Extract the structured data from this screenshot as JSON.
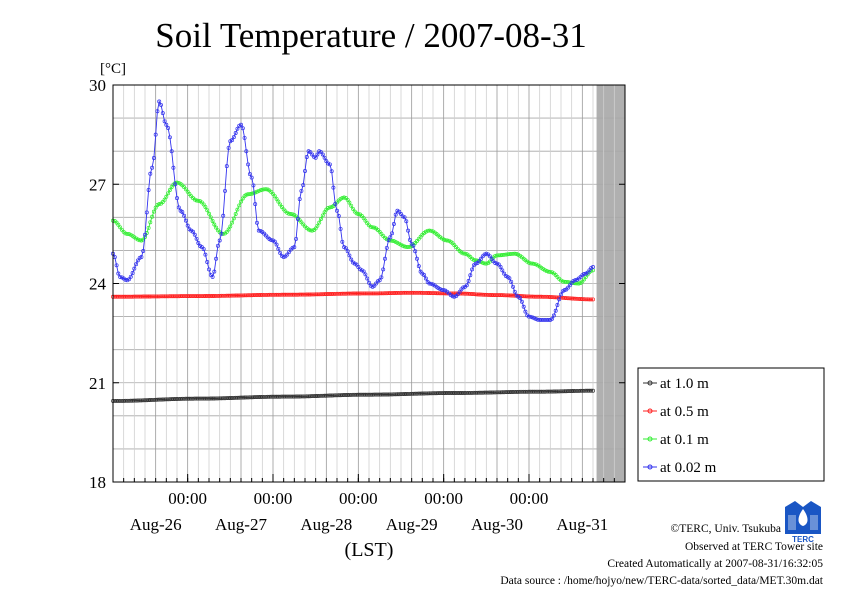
{
  "chart_data": {
    "type": "line",
    "title": "Soil Temperature / 2007-08-31",
    "yunit": "[°C]",
    "xlabel": "(LST)",
    "ylim": [
      18,
      30
    ],
    "yticks": [
      {
        "value": 18,
        "label": "18"
      },
      {
        "value": 21,
        "label": "21"
      },
      {
        "value": 24,
        "label": "24"
      },
      {
        "value": 27,
        "label": "27"
      },
      {
        "value": 30,
        "label": "30"
      }
    ],
    "xlim": [
      0,
      144
    ],
    "time_ticks": [
      {
        "hour": 21,
        "label": "00:00"
      },
      {
        "hour": 45,
        "label": "00:00"
      },
      {
        "hour": 69,
        "label": "00:00"
      },
      {
        "hour": 93,
        "label": "00:00"
      },
      {
        "hour": 117,
        "label": "00:00"
      }
    ],
    "day_labels": [
      {
        "hour": 12,
        "label": "Aug-26"
      },
      {
        "hour": 36,
        "label": "Aug-27"
      },
      {
        "hour": 60,
        "label": "Aug-28"
      },
      {
        "hour": 84,
        "label": "Aug-29"
      },
      {
        "hour": 108,
        "label": "Aug-30"
      },
      {
        "hour": 132,
        "label": "Aug-31"
      }
    ],
    "no_data_from_hour": 136,
    "series": [
      {
        "name": "at 1.0 m",
        "color": "#333333",
        "x": [
          0,
          24,
          48,
          72,
          96,
          120,
          135
        ],
        "values": [
          20.45,
          20.52,
          20.58,
          20.64,
          20.69,
          20.73,
          20.76
        ]
      },
      {
        "name": "at 0.5 m",
        "color": "#ff2020",
        "x": [
          0,
          24,
          48,
          72,
          84,
          96,
          108,
          120,
          135
        ],
        "values": [
          23.6,
          23.62,
          23.66,
          23.7,
          23.72,
          23.7,
          23.65,
          23.6,
          23.52
        ]
      },
      {
        "name": "at 0.1 m",
        "color": "#33ee33",
        "x": [
          0,
          4,
          8,
          13,
          18,
          24,
          31,
          38,
          43,
          50,
          56,
          61,
          65,
          69,
          73,
          78,
          83,
          89,
          94,
          99,
          102,
          105,
          108,
          113,
          118,
          123,
          127,
          131,
          135
        ],
        "values": [
          25.9,
          25.5,
          25.3,
          26.4,
          27.05,
          26.5,
          25.5,
          26.7,
          26.85,
          26.1,
          25.6,
          26.3,
          26.6,
          26.1,
          25.7,
          25.3,
          25.1,
          25.6,
          25.3,
          24.9,
          24.7,
          24.6,
          24.85,
          24.9,
          24.6,
          24.35,
          24.05,
          24.0,
          24.4
        ]
      },
      {
        "name": "at 0.02 m",
        "color": "#3333ee",
        "x": [
          0,
          2,
          4,
          8,
          11,
          13,
          15,
          19,
          22,
          25,
          28,
          30,
          33,
          36,
          39,
          41,
          45,
          48,
          51,
          53,
          55,
          57,
          58,
          61,
          63,
          65,
          68,
          70,
          73,
          75,
          78,
          80,
          82,
          84,
          87,
          89,
          93,
          96,
          99,
          102,
          105,
          108,
          111,
          114,
          117,
          120,
          123,
          127,
          130,
          133,
          135
        ],
        "values": [
          24.9,
          24.2,
          24.1,
          24.8,
          27.5,
          29.5,
          28.8,
          26.2,
          25.6,
          25.1,
          24.2,
          25.3,
          28.3,
          28.8,
          27.2,
          25.6,
          25.3,
          24.8,
          25.1,
          26.8,
          28.0,
          27.8,
          28.0,
          27.6,
          26.2,
          25.1,
          24.6,
          24.4,
          23.9,
          24.1,
          25.4,
          26.2,
          26.0,
          25.2,
          24.3,
          24.0,
          23.8,
          23.6,
          23.9,
          24.6,
          24.9,
          24.6,
          24.2,
          23.6,
          23.0,
          22.9,
          22.9,
          23.8,
          24.1,
          24.3,
          24.5
        ]
      }
    ]
  },
  "credits": {
    "copyright": "©TERC, Univ. Tsukuba",
    "observed": "Observed at TERC Tower site",
    "created": "Created Automatically at 2007-08-31/16:32:05",
    "source": "Data source : /home/hojyo/new/TERC-data/sorted_data/MET.30m.dat"
  },
  "logo": {
    "text": "TERC"
  }
}
